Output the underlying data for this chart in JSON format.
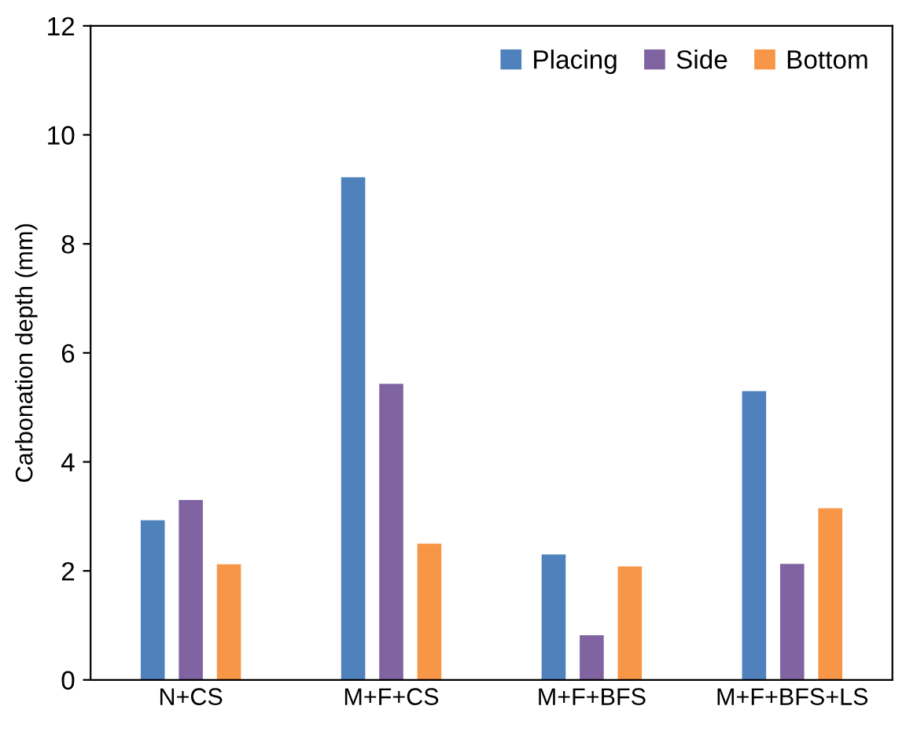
{
  "chart_data": {
    "type": "bar",
    "ylabel": "Carbonation depth (mm)",
    "categories": [
      "N+CS",
      "M+F+CS",
      "M+F+BFS",
      "M+F+BFS+LS"
    ],
    "series": [
      {
        "name": "Placing",
        "color": "#4f81bd",
        "values": [
          2.93,
          9.22,
          2.3,
          5.3
        ]
      },
      {
        "name": "Side",
        "color": "#8064a2",
        "values": [
          3.3,
          5.43,
          0.82,
          2.13
        ]
      },
      {
        "name": "Bottom",
        "color": "#f79646",
        "values": [
          2.12,
          2.5,
          2.08,
          3.15
        ]
      }
    ],
    "ylim": [
      0,
      12
    ],
    "yticks": [
      0,
      2,
      4,
      6,
      8,
      10,
      12
    ],
    "grid": false,
    "legend": "top right"
  }
}
